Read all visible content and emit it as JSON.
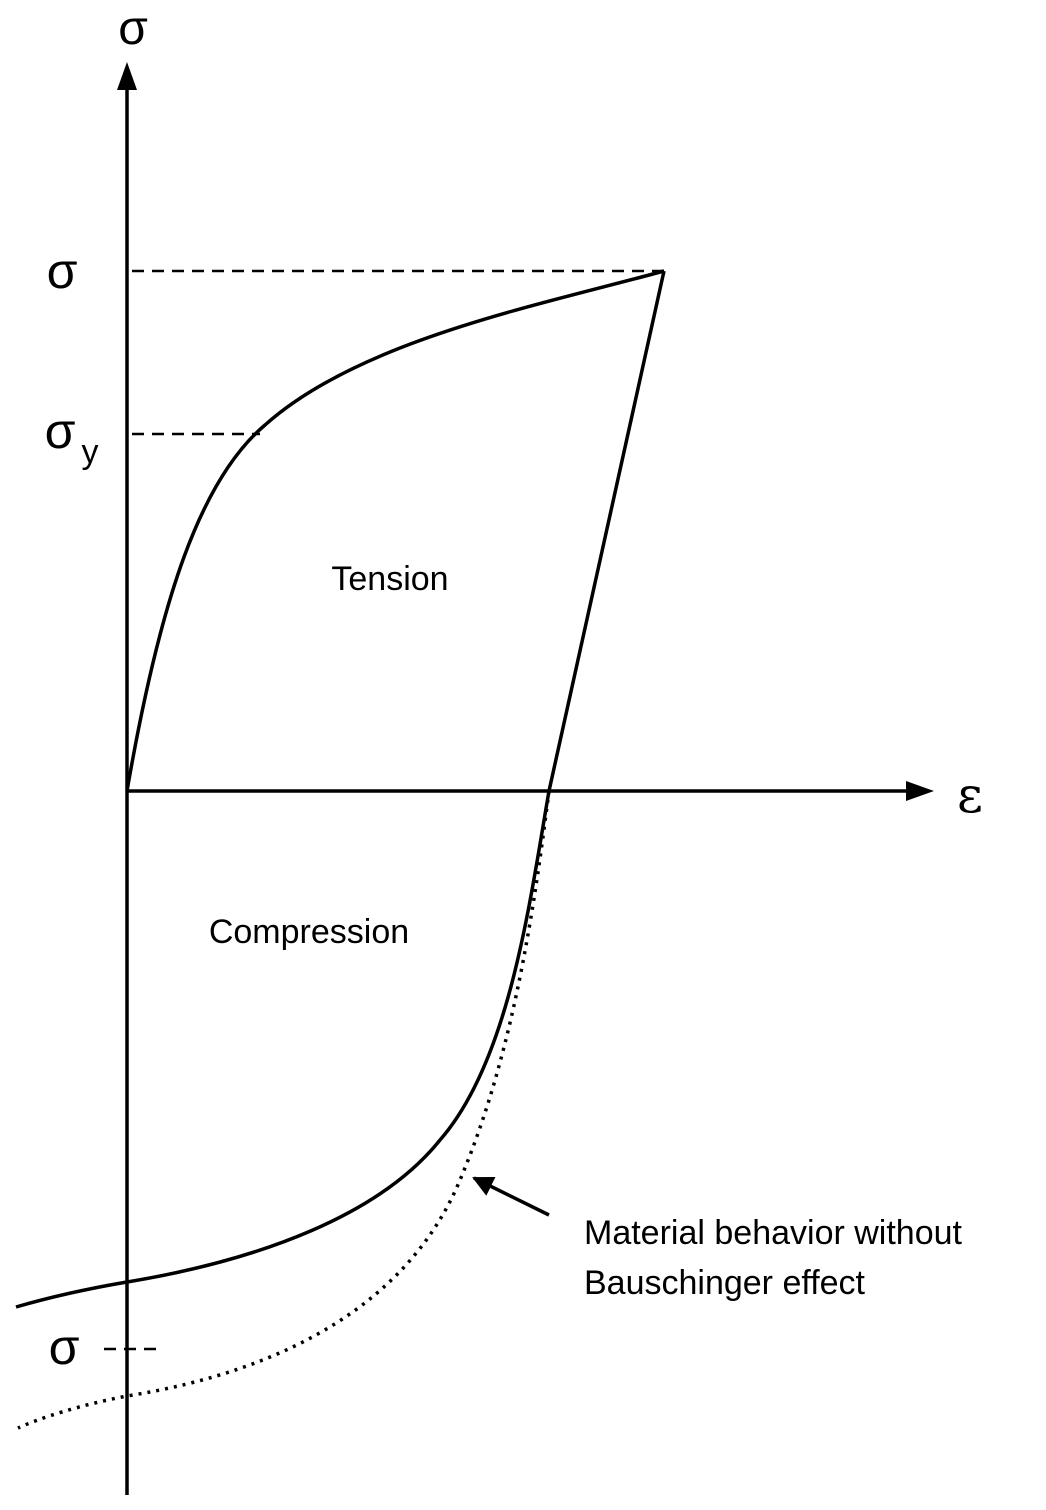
{
  "axes": {
    "y_label": "σ",
    "x_label": "ε"
  },
  "levels": {
    "max_stress": "σ",
    "yield_stress": "σ",
    "yield_subscript": "y",
    "reverse_stress": "σ"
  },
  "regions": {
    "tension": "Tension",
    "compression": "Compression"
  },
  "annotation": {
    "line1": "Material behavior without",
    "line2": "Bauschinger effect"
  },
  "colors": {
    "ink": "#000000",
    "background": "#ffffff"
  }
}
